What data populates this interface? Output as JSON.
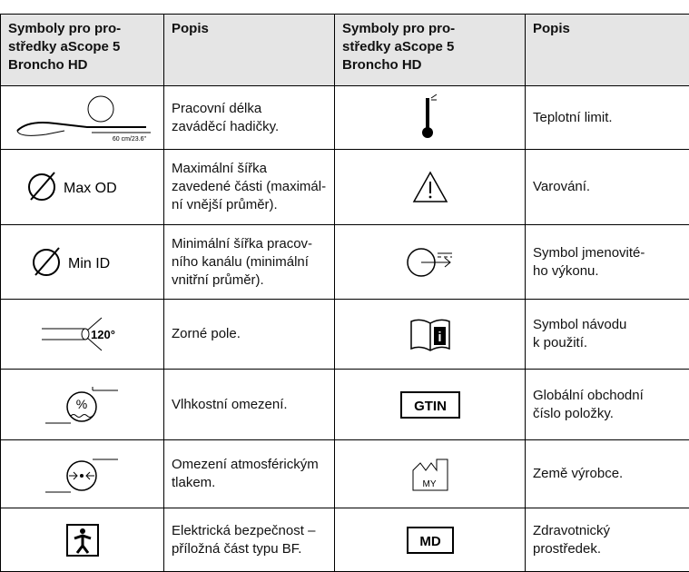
{
  "table": {
    "headers": [
      "Symboly pro pro-\nstředky aScope 5\nBroncho HD",
      "Popis",
      "Symboly pro pro-\nstředky aScope 5\nBroncho HD",
      "Popis"
    ],
    "rows": [
      [
        "Pracovní délka\nzaváděcí hadičky.",
        "Teplotní limit."
      ],
      [
        "Maximální šířka\nzavedené části (maximál-\nní vnější průměr).",
        "Varování."
      ],
      [
        "Minimální šířka pracov-\nního kanálu (minimální\nvnitřní průměr).",
        "Symbol jmenovité-\nho výkonu."
      ],
      [
        "Zorné pole.",
        "Symbol návodu\nk použití."
      ],
      [
        "Vlhkostní omezení.",
        "Globální obchodní\nčíslo položky."
      ],
      [
        "Omezení atmosférickým\ntlakem.",
        "Země výrobce."
      ],
      [
        "Elektrická bezpečnost –\npříložná část typu BF.",
        "Zdravotnický\nprostředek."
      ]
    ],
    "icon_labels": {
      "length": "60 cm/23.6\"",
      "max_od": "Max OD",
      "min_id": "Min ID",
      "angle": "120°",
      "humidity": "%",
      "gtin": "GTIN",
      "country": "MY",
      "md": "MD"
    }
  }
}
